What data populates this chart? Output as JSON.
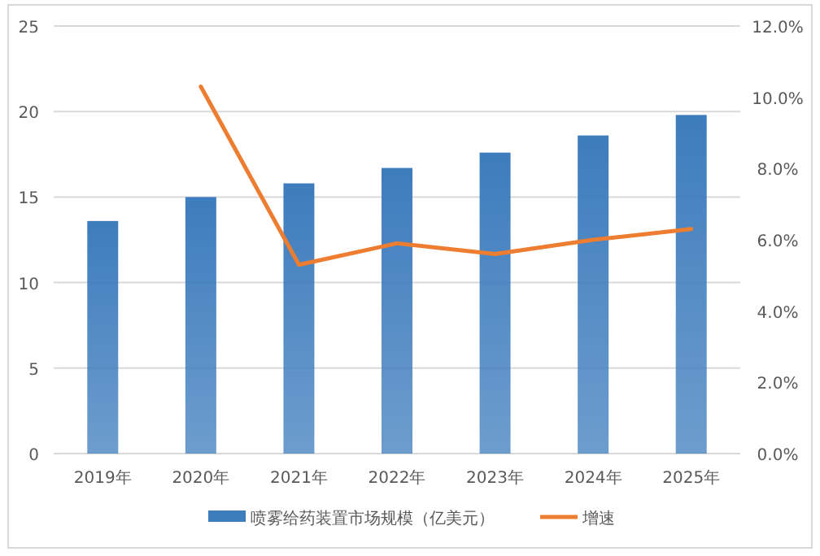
{
  "chart_data": {
    "type": "bar",
    "categories": [
      "2019年",
      "2020年",
      "2021年",
      "2022年",
      "2023年",
      "2024年",
      "2025年"
    ],
    "series": [
      {
        "name": "喷雾给药装置市场规模（亿美元）",
        "color": "#3d7cbd",
        "values": [
          13.6,
          15.0,
          15.8,
          16.7,
          17.6,
          18.6,
          19.8
        ]
      },
      {
        "name": "增速",
        "type": "line",
        "axis": "y2",
        "color": "#ed7d31",
        "values": [
          null,
          10.3,
          5.3,
          5.9,
          5.6,
          6.0,
          6.3
        ]
      }
    ],
    "ylim": [
      0,
      25
    ],
    "yticks": [
      0,
      5,
      10,
      15,
      20,
      25
    ],
    "y2lim": [
      0,
      12
    ],
    "y2ticks": [
      {
        "value": 0,
        "label": "0.0%"
      },
      {
        "value": 2,
        "label": "2.0%"
      },
      {
        "value": 4,
        "label": "4.0%"
      },
      {
        "value": 6,
        "label": "6.0%"
      },
      {
        "value": 8,
        "label": "8.0%"
      },
      {
        "value": 10,
        "label": "10.0%"
      },
      {
        "value": 12,
        "label": "12.0%"
      }
    ],
    "grid": "y",
    "legend": "bottom",
    "marker": "none",
    "line_style": "solid"
  }
}
